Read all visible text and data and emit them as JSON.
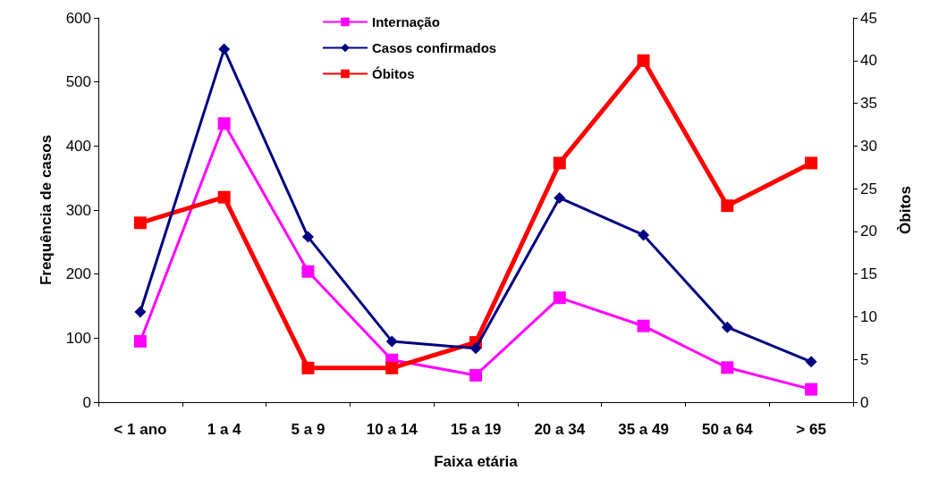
{
  "chart_data": {
    "type": "line",
    "xlabel": "Faixa etária",
    "ylabel": "Frequência de casos",
    "y2label": "Òbitos",
    "categories": [
      "< 1 ano",
      "1 a 4",
      "5 a 9",
      "10 a 14",
      "15 a 19",
      "20 a 34",
      "35 a 49",
      "50 a 64",
      "> 65"
    ],
    "series": [
      {
        "name": "Internação",
        "color": "#ff00ff",
        "marker": "square",
        "values": [
          95,
          435,
          204,
          66,
          42,
          163,
          119,
          54,
          20
        ]
      },
      {
        "name": "Casos confirmados",
        "color": "#000080",
        "marker": "diamond",
        "values": [
          141,
          551,
          258,
          95,
          84,
          319,
          261,
          117,
          63
        ]
      },
      {
        "name": "Óbitos",
        "color": "#ff0000",
        "marker": "square",
        "axis": "y2",
        "values": [
          21,
          24,
          4,
          4,
          7,
          28,
          40,
          23,
          28
        ]
      }
    ],
    "ylim": [
      0,
      600
    ],
    "yticks": [
      0,
      100,
      200,
      300,
      400,
      500,
      600
    ],
    "y2lim": [
      0,
      45
    ],
    "y2ticks": [
      0,
      5,
      10,
      15,
      20,
      25,
      30,
      35,
      40,
      45
    ],
    "grid": false,
    "legend": "top"
  }
}
